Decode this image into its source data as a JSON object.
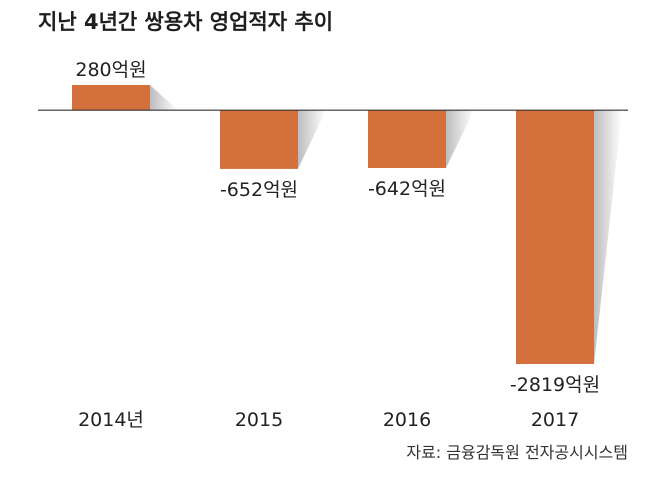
{
  "source": "자료: 금융감독원 전자공시시스템",
  "colors": {
    "bar": "#d3703b",
    "baseline": "#333333",
    "shadow": "#bdbdbd"
  },
  "chart_data": {
    "type": "bar",
    "title": "지난 4년간 쌍용차 영업적자 추이",
    "categories": [
      "2014년",
      "2015",
      "2016",
      "2017"
    ],
    "values": [
      280,
      -652,
      -642,
      -2819
    ],
    "data_labels": [
      "280억원",
      "-652억원",
      "-642억원",
      "-2819억원"
    ],
    "ylim": [
      -2819,
      280
    ],
    "grid": false
  }
}
